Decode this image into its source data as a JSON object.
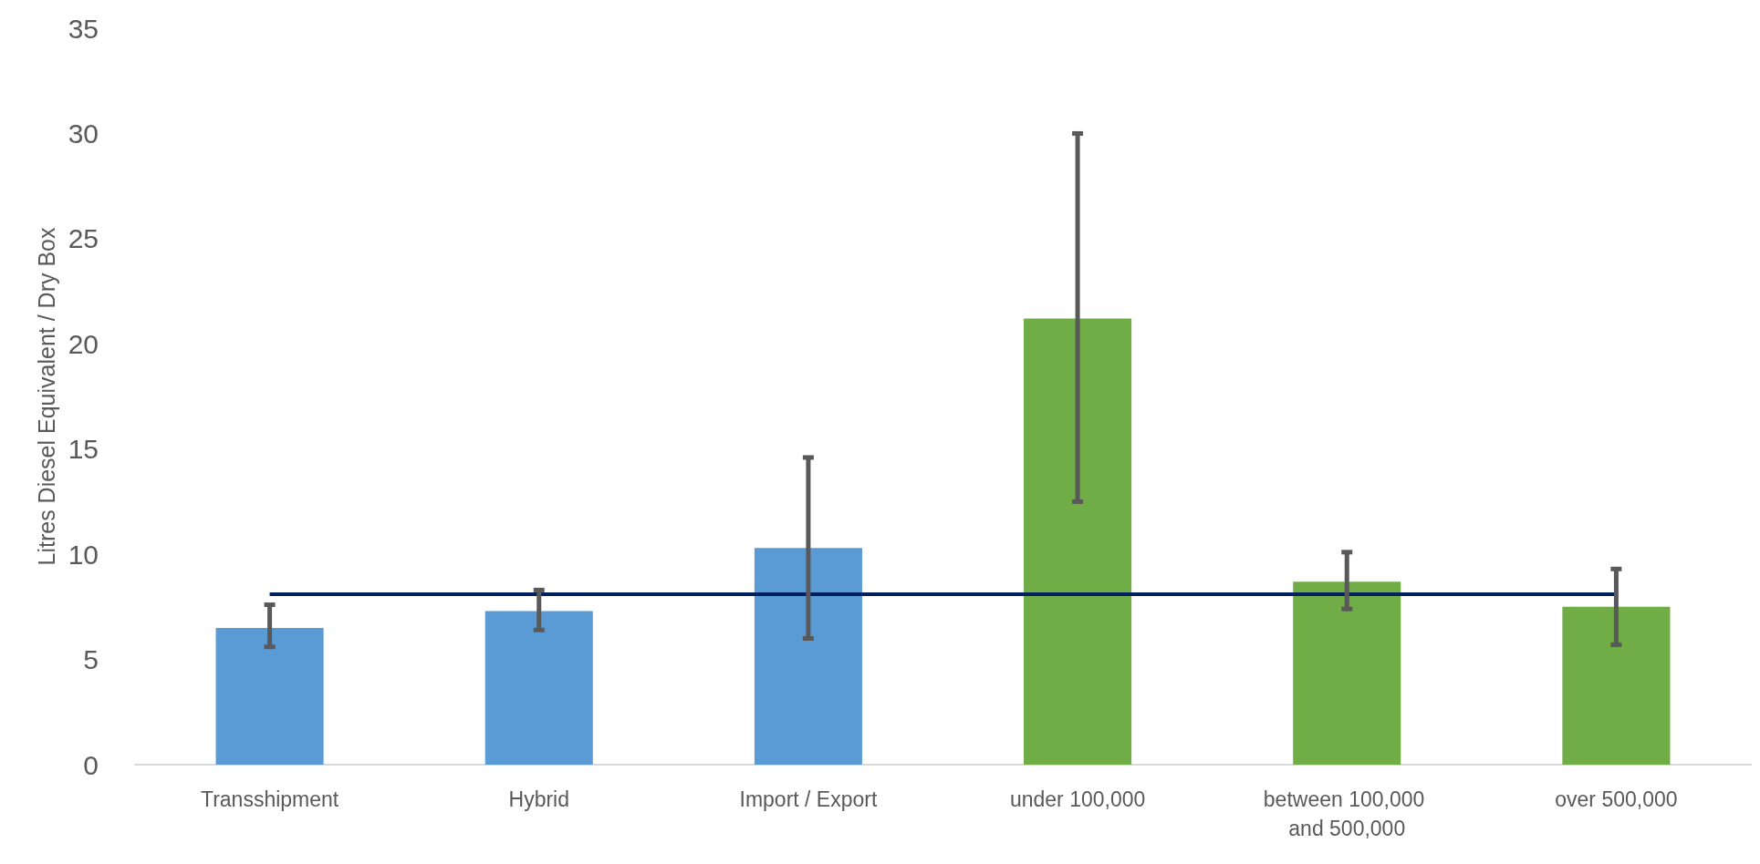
{
  "chart_data": {
    "type": "bar",
    "ylabel": "Litres Diesel Equivalent / Dry Box",
    "categories": [
      "Transshipment",
      "Hybrid",
      "Import / Export",
      "under 100,000",
      "between 100,000 and 500,000",
      "over 500,000"
    ],
    "values": [
      6.5,
      7.3,
      10.3,
      21.2,
      8.7,
      7.5
    ],
    "colors": [
      "#5b9bd5",
      "#5b9bd5",
      "#5b9bd5",
      "#70ad47",
      "#70ad47",
      "#70ad47"
    ],
    "errors": [
      [
        5.6,
        7.6
      ],
      [
        6.4,
        8.3
      ],
      [
        6.0,
        14.6
      ],
      [
        12.5,
        30.0
      ],
      [
        7.4,
        10.1
      ],
      [
        5.7,
        9.3
      ]
    ],
    "ylim": [
      0,
      35
    ],
    "yticks": [
      0,
      5,
      10,
      15,
      20,
      25,
      30,
      35
    ],
    "grid": false,
    "ref_lines": [
      {
        "axis": "y",
        "value": 8.1,
        "color": "#002060"
      }
    ]
  }
}
